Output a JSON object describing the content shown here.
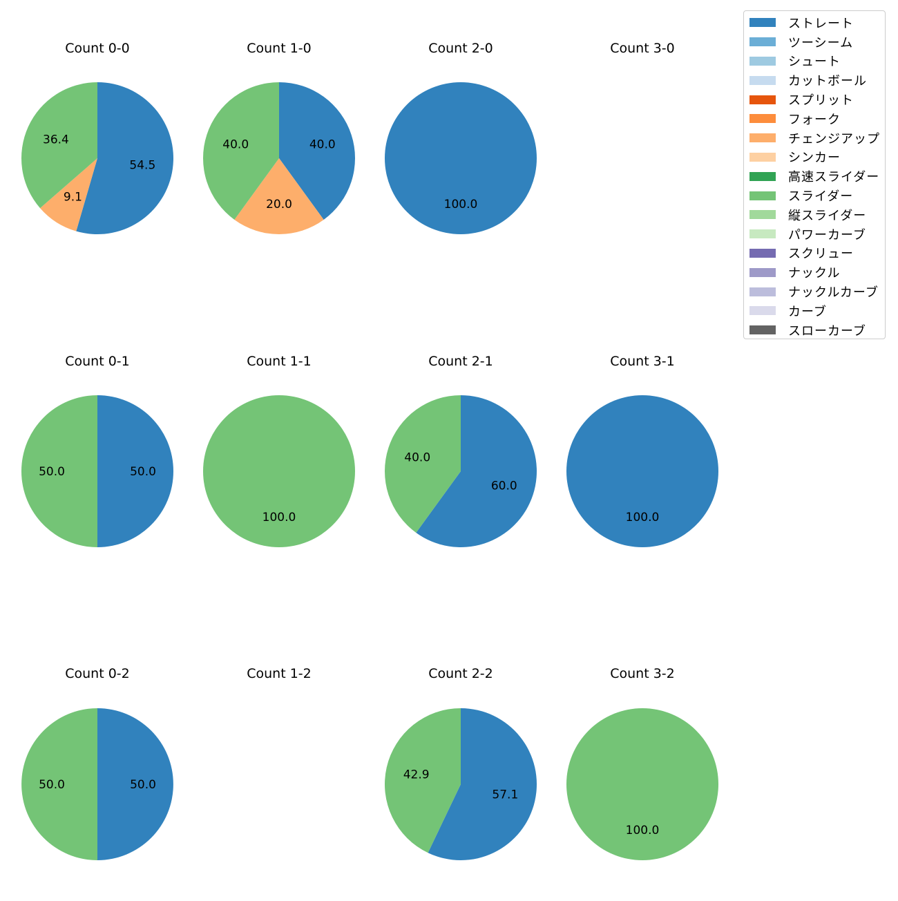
{
  "chart_data": {
    "type": "pie",
    "start_angle_deg": 90,
    "direction": "clockwise",
    "pitch_types": [
      {
        "name": "ストレート",
        "color": "#3182bd"
      },
      {
        "name": "ツーシーム",
        "color": "#6baed6"
      },
      {
        "name": "シュート",
        "color": "#9ecae1"
      },
      {
        "name": "カットボール",
        "color": "#c6dbef"
      },
      {
        "name": "スプリット",
        "color": "#e6550d"
      },
      {
        "name": "フォーク",
        "color": "#fd8d3c"
      },
      {
        "name": "チェンジアップ",
        "color": "#fdae6b"
      },
      {
        "name": "シンカー",
        "color": "#fdd0a2"
      },
      {
        "name": "高速スライダー",
        "color": "#31a354"
      },
      {
        "name": "スライダー",
        "color": "#74c476"
      },
      {
        "name": "縦スライダー",
        "color": "#a1d99b"
      },
      {
        "name": "パワーカーブ",
        "color": "#c7e9c0"
      },
      {
        "name": "スクリュー",
        "color": "#756bb1"
      },
      {
        "name": "ナックル",
        "color": "#9e9ac8"
      },
      {
        "name": "ナックルカーブ",
        "color": "#bcbddc"
      },
      {
        "name": "カーブ",
        "color": "#dadaeb"
      },
      {
        "name": "スローカーブ",
        "color": "#636363"
      }
    ],
    "charts": [
      {
        "title": "Count 0-0",
        "slices": [
          {
            "pitch": "ストレート",
            "value": 54.5,
            "label": "54.5"
          },
          {
            "pitch": "チェンジアップ",
            "value": 9.1,
            "label": "9.1"
          },
          {
            "pitch": "スライダー",
            "value": 36.4,
            "label": "36.4"
          }
        ]
      },
      {
        "title": "Count 1-0",
        "slices": [
          {
            "pitch": "ストレート",
            "value": 40.0,
            "label": "40.0"
          },
          {
            "pitch": "チェンジアップ",
            "value": 20.0,
            "label": "20.0"
          },
          {
            "pitch": "スライダー",
            "value": 40.0,
            "label": "40.0"
          }
        ]
      },
      {
        "title": "Count 2-0",
        "slices": [
          {
            "pitch": "ストレート",
            "value": 100.0,
            "label": "100.0"
          }
        ]
      },
      {
        "title": "Count 3-0",
        "slices": []
      },
      {
        "title": "Count 0-1",
        "slices": [
          {
            "pitch": "ストレート",
            "value": 50.0,
            "label": "50.0"
          },
          {
            "pitch": "スライダー",
            "value": 50.0,
            "label": "50.0"
          }
        ]
      },
      {
        "title": "Count 1-1",
        "slices": [
          {
            "pitch": "スライダー",
            "value": 100.0,
            "label": "100.0"
          }
        ]
      },
      {
        "title": "Count 2-1",
        "slices": [
          {
            "pitch": "ストレート",
            "value": 60.0,
            "label": "60.0"
          },
          {
            "pitch": "スライダー",
            "value": 40.0,
            "label": "40.0"
          }
        ]
      },
      {
        "title": "Count 3-1",
        "slices": [
          {
            "pitch": "ストレート",
            "value": 100.0,
            "label": "100.0"
          }
        ]
      },
      {
        "title": "Count 0-2",
        "slices": [
          {
            "pitch": "ストレート",
            "value": 50.0,
            "label": "50.0"
          },
          {
            "pitch": "スライダー",
            "value": 50.0,
            "label": "50.0"
          }
        ]
      },
      {
        "title": "Count 1-2",
        "slices": []
      },
      {
        "title": "Count 2-2",
        "slices": [
          {
            "pitch": "ストレート",
            "value": 57.1,
            "label": "57.1"
          },
          {
            "pitch": "スライダー",
            "value": 42.9,
            "label": "42.9"
          }
        ]
      },
      {
        "title": "Count 3-2",
        "slices": [
          {
            "pitch": "スライダー",
            "value": 100.0,
            "label": "100.0"
          }
        ]
      }
    ]
  }
}
